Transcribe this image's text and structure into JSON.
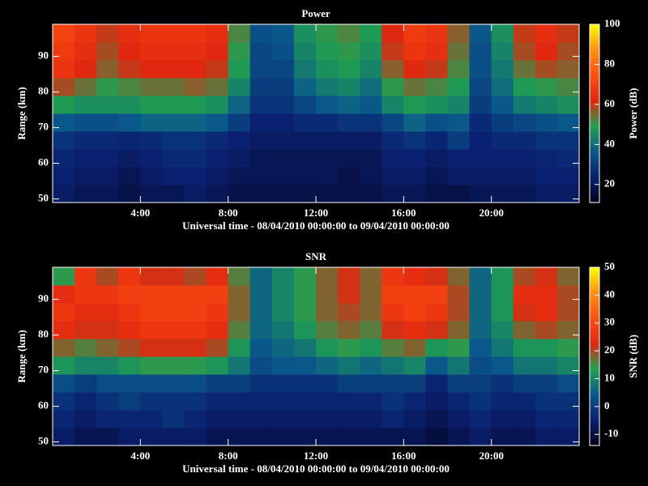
{
  "chart_data": [
    {
      "type": "heatmap",
      "title": "Power",
      "xlabel": "Universal time - 08/04/2010 00:00:00 to 09/04/2010 00:00:00",
      "ylabel": "Range (km)",
      "colorbar_label": "Power (dB)",
      "xlim": [
        0,
        24
      ],
      "xticks": [
        {
          "value": 4,
          "label": "4:00"
        },
        {
          "value": 8,
          "label": "8:00"
        },
        {
          "value": 12,
          "label": "12:00"
        },
        {
          "value": 16,
          "label": "16:00"
        },
        {
          "value": 20,
          "label": "20:00"
        }
      ],
      "ylim": [
        49,
        99
      ],
      "yticks": [
        50,
        60,
        70,
        80,
        90
      ],
      "clim": [
        11,
        100
      ],
      "cticks": [
        20,
        40,
        60,
        80,
        100
      ],
      "colormap": [
        "#000018",
        "#0a2070",
        "#0a5a8a",
        "#20a050",
        "#e02810",
        "#ff5010",
        "#ff9010",
        "#ffff00"
      ],
      "x_edges": [
        0,
        1,
        2,
        3,
        4,
        5,
        6,
        7,
        8,
        9,
        10,
        11,
        12,
        13,
        14,
        15,
        16,
        17,
        18,
        19,
        20,
        21,
        22,
        23,
        24
      ],
      "y_edges": [
        49,
        54,
        59,
        64,
        69,
        74,
        79,
        84,
        89,
        94,
        99
      ],
      "values": [
        [
          22,
          20,
          20,
          18,
          20,
          20,
          22,
          20,
          18,
          18,
          18,
          18,
          18,
          18,
          18,
          20,
          20,
          18,
          18,
          20,
          20,
          20,
          22,
          22
        ],
        [
          24,
          22,
          22,
          20,
          22,
          24,
          24,
          22,
          20,
          20,
          20,
          20,
          20,
          18,
          20,
          22,
          22,
          20,
          22,
          22,
          22,
          22,
          24,
          24
        ],
        [
          25,
          24,
          24,
          22,
          24,
          26,
          26,
          24,
          22,
          20,
          20,
          20,
          20,
          20,
          20,
          24,
          24,
          22,
          24,
          24,
          24,
          24,
          25,
          26
        ],
        [
          28,
          26,
          26,
          25,
          26,
          28,
          28,
          26,
          24,
          22,
          22,
          22,
          22,
          22,
          22,
          26,
          28,
          25,
          30,
          24,
          26,
          26,
          28,
          28
        ],
        [
          36,
          34,
          34,
          36,
          38,
          38,
          38,
          36,
          30,
          24,
          24,
          26,
          26,
          28,
          28,
          32,
          38,
          34,
          36,
          26,
          30,
          32,
          34,
          36
        ],
        [
          48,
          46,
          46,
          46,
          48,
          48,
          48,
          46,
          38,
          28,
          28,
          32,
          36,
          38,
          36,
          44,
          48,
          46,
          44,
          30,
          36,
          42,
          44,
          46
        ],
        [
          58,
          54,
          50,
          52,
          54,
          54,
          56,
          54,
          44,
          30,
          30,
          38,
          42,
          44,
          40,
          50,
          54,
          52,
          48,
          32,
          40,
          48,
          50,
          52
        ],
        [
          66,
          62,
          56,
          60,
          62,
          62,
          62,
          60,
          48,
          32,
          32,
          42,
          46,
          48,
          44,
          56,
          62,
          60,
          52,
          34,
          42,
          54,
          58,
          56
        ],
        [
          68,
          64,
          58,
          62,
          64,
          64,
          64,
          62,
          50,
          32,
          34,
          44,
          48,
          50,
          46,
          60,
          66,
          64,
          54,
          34,
          44,
          58,
          62,
          58
        ],
        [
          70,
          66,
          60,
          64,
          66,
          66,
          66,
          64,
          52,
          34,
          36,
          46,
          50,
          52,
          48,
          62,
          68,
          66,
          56,
          36,
          46,
          60,
          64,
          60
        ]
      ]
    },
    {
      "type": "heatmap",
      "title": "SNR",
      "xlabel": "Universal time - 08/04/2010 00:00:00 to 09/04/2010 00:00:00",
      "ylabel": "Range (km)",
      "colorbar_label": "SNR (dB)",
      "xlim": [
        0,
        24
      ],
      "xticks": [
        {
          "value": 4,
          "label": "4:00"
        },
        {
          "value": 8,
          "label": "8:00"
        },
        {
          "value": 12,
          "label": "12:00"
        },
        {
          "value": 16,
          "label": "16:00"
        },
        {
          "value": 20,
          "label": "20:00"
        }
      ],
      "ylim": [
        49,
        99
      ],
      "yticks": [
        50,
        60,
        70,
        80,
        90
      ],
      "clim": [
        -14,
        50
      ],
      "cticks": [
        -10,
        0,
        10,
        20,
        30,
        40,
        50
      ],
      "colormap": [
        "#000018",
        "#0a2070",
        "#0a5a8a",
        "#20a050",
        "#e02810",
        "#ff5010",
        "#ff9010",
        "#ffff00"
      ],
      "x_edges": [
        0,
        1,
        2,
        3,
        4,
        5,
        6,
        7,
        8,
        9,
        10,
        11,
        12,
        13,
        14,
        15,
        16,
        17,
        18,
        19,
        20,
        21,
        22,
        23,
        24
      ],
      "y_edges": [
        49,
        54,
        59,
        64,
        69,
        74,
        79,
        84,
        89,
        94,
        99
      ],
      "values": [
        [
          -6,
          -8,
          -8,
          -6,
          -6,
          -6,
          -6,
          -8,
          -8,
          -8,
          -8,
          -8,
          -8,
          -8,
          -8,
          -8,
          -8,
          -10,
          -8,
          -6,
          -8,
          -8,
          -6,
          -6
        ],
        [
          -4,
          -6,
          -4,
          -4,
          -4,
          -2,
          -4,
          -6,
          -6,
          -6,
          -6,
          -6,
          -6,
          -6,
          -6,
          -4,
          -6,
          -8,
          -6,
          -4,
          -6,
          -6,
          -4,
          -4
        ],
        [
          -2,
          -4,
          -2,
          0,
          -2,
          -2,
          -2,
          -4,
          -4,
          -4,
          -4,
          -4,
          -4,
          -4,
          -4,
          -2,
          -4,
          -6,
          -4,
          -2,
          -4,
          -4,
          -2,
          -2
        ],
        [
          2,
          0,
          2,
          2,
          2,
          2,
          2,
          0,
          0,
          -2,
          -2,
          -2,
          -2,
          0,
          0,
          0,
          0,
          -4,
          0,
          0,
          -2,
          0,
          0,
          2
        ],
        [
          12,
          10,
          10,
          12,
          14,
          14,
          14,
          12,
          8,
          2,
          4,
          4,
          6,
          8,
          6,
          8,
          10,
          4,
          8,
          2,
          4,
          8,
          8,
          10
        ],
        [
          18,
          16,
          18,
          20,
          22,
          22,
          22,
          20,
          12,
          4,
          6,
          8,
          12,
          14,
          12,
          16,
          18,
          12,
          14,
          4,
          8,
          12,
          12,
          14
        ],
        [
          24,
          22,
          22,
          24,
          26,
          26,
          26,
          24,
          16,
          6,
          8,
          12,
          16,
          18,
          16,
          22,
          24,
          22,
          18,
          6,
          10,
          18,
          20,
          18
        ],
        [
          26,
          24,
          24,
          26,
          28,
          28,
          28,
          26,
          18,
          6,
          10,
          14,
          18,
          20,
          18,
          26,
          28,
          26,
          20,
          6,
          12,
          22,
          24,
          20
        ],
        [
          24,
          26,
          26,
          28,
          28,
          28,
          28,
          28,
          18,
          6,
          10,
          14,
          18,
          22,
          18,
          28,
          28,
          28,
          20,
          6,
          12,
          24,
          24,
          20
        ],
        [
          14,
          26,
          20,
          26,
          22,
          22,
          20,
          24,
          16,
          6,
          10,
          14,
          18,
          22,
          18,
          26,
          24,
          22,
          18,
          6,
          12,
          20,
          22,
          18
        ]
      ]
    }
  ]
}
